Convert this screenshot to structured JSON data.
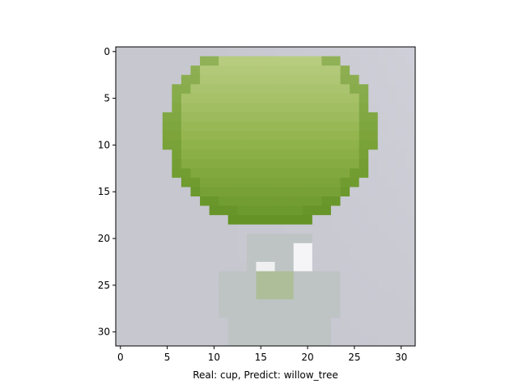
{
  "chart_data": {
    "type": "image",
    "xlabel": "Real: cup, Predict: willow_tree",
    "ylabel": "",
    "title": "",
    "xlim": [
      -0.5,
      31.5
    ],
    "ylim": [
      31.5,
      -0.5
    ],
    "xticks": [
      0,
      5,
      10,
      15,
      20,
      25,
      30
    ],
    "yticks": [
      0,
      5,
      10,
      15,
      20,
      25,
      30
    ],
    "xtick_labels": [
      "0",
      "5",
      "10",
      "15",
      "20",
      "25",
      "30"
    ],
    "ytick_labels": [
      "0",
      "5",
      "10",
      "15",
      "20",
      "25",
      "30"
    ],
    "image_size": [
      32,
      32
    ],
    "image_subject": "green glass cup with stem on light grey background",
    "grid": false
  },
  "colors": {
    "background": "#c6c7cf",
    "glass_green": "#8fb24a",
    "glass_dark": "#5f8f22",
    "glass_light": "#bccf86",
    "stem": "#b8c2bb"
  }
}
